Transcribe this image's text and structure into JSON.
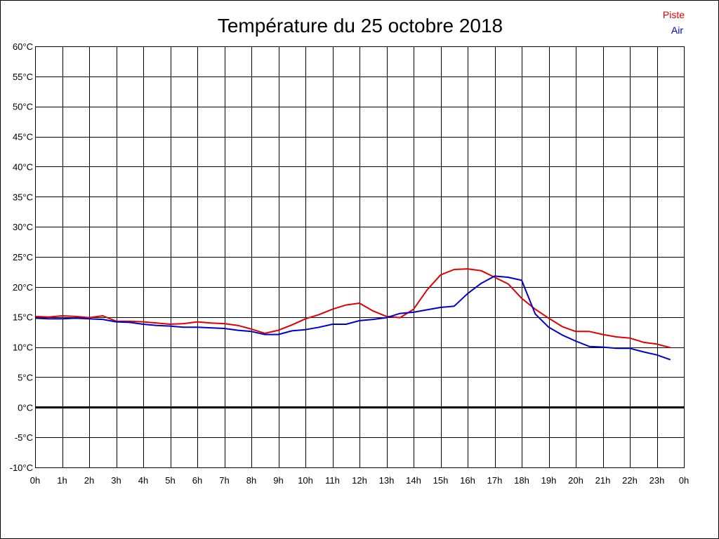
{
  "chart_data": {
    "type": "line",
    "title": "Température du 25 octobre 2018",
    "xlabel": "",
    "ylabel": "",
    "grid": true,
    "legend_position": "top-right",
    "ylim": [
      -10,
      60
    ],
    "y_ticks": [
      -10,
      -5,
      0,
      5,
      10,
      15,
      20,
      25,
      30,
      35,
      40,
      45,
      50,
      55,
      60
    ],
    "y_tick_labels": [
      "-10°C",
      "-5°C",
      "0°C",
      "5°C",
      "10°C",
      "15°C",
      "20°C",
      "25°C",
      "30°C",
      "35°C",
      "40°C",
      "45°C",
      "50°C",
      "55°C",
      "60°C"
    ],
    "x_tick_labels": [
      "0h",
      "1h",
      "2h",
      "3h",
      "4h",
      "5h",
      "6h",
      "7h",
      "8h",
      "9h",
      "10h",
      "11h",
      "12h",
      "13h",
      "14h",
      "15h",
      "16h",
      "17h",
      "18h",
      "19h",
      "20h",
      "21h",
      "22h",
      "23h",
      "0h"
    ],
    "x_hours": [
      0,
      0.5,
      1,
      1.5,
      2,
      2.5,
      3,
      3.5,
      4,
      4.5,
      5,
      5.5,
      6,
      6.5,
      7,
      7.5,
      8,
      8.5,
      9,
      9.5,
      10,
      10.5,
      11,
      11.5,
      12,
      12.5,
      13,
      13.5,
      14,
      14.5,
      15,
      15.5,
      16,
      16.5,
      17,
      17.5,
      18,
      18.5,
      19,
      19.5,
      20,
      20.5,
      21,
      21.5,
      22,
      22.5,
      23,
      23.5
    ],
    "series": [
      {
        "name": "Piste",
        "color": "#e00000",
        "values": [
          15.1,
          15.0,
          15.2,
          15.1,
          14.9,
          15.2,
          14.3,
          14.3,
          14.2,
          14.0,
          13.8,
          13.9,
          14.2,
          14.0,
          13.9,
          13.6,
          13.0,
          12.3,
          12.8,
          13.7,
          14.7,
          15.4,
          16.3,
          17.0,
          17.3,
          16.0,
          15.1,
          14.9,
          16.3,
          19.5,
          22.0,
          22.9,
          23.0,
          22.7,
          21.6,
          20.5,
          18.1,
          16.3,
          14.8,
          13.4,
          12.6,
          12.6,
          12.1,
          11.7,
          11.5,
          10.8,
          10.5,
          9.9
        ]
      },
      {
        "name": "Air",
        "color": "#0000cc",
        "values": [
          14.8,
          14.7,
          14.7,
          14.8,
          14.7,
          14.6,
          14.2,
          14.1,
          13.8,
          13.6,
          13.5,
          13.3,
          13.3,
          13.2,
          13.1,
          12.8,
          12.6,
          12.1,
          12.1,
          12.7,
          12.9,
          13.3,
          13.8,
          13.8,
          14.4,
          14.6,
          14.9,
          15.6,
          15.8,
          16.2,
          16.6,
          16.8,
          18.9,
          20.6,
          21.8,
          21.6,
          21.1,
          15.5,
          13.3,
          12.0,
          11.0,
          10.1,
          10.0,
          9.8,
          9.8,
          9.2,
          8.7,
          7.9
        ]
      }
    ]
  }
}
